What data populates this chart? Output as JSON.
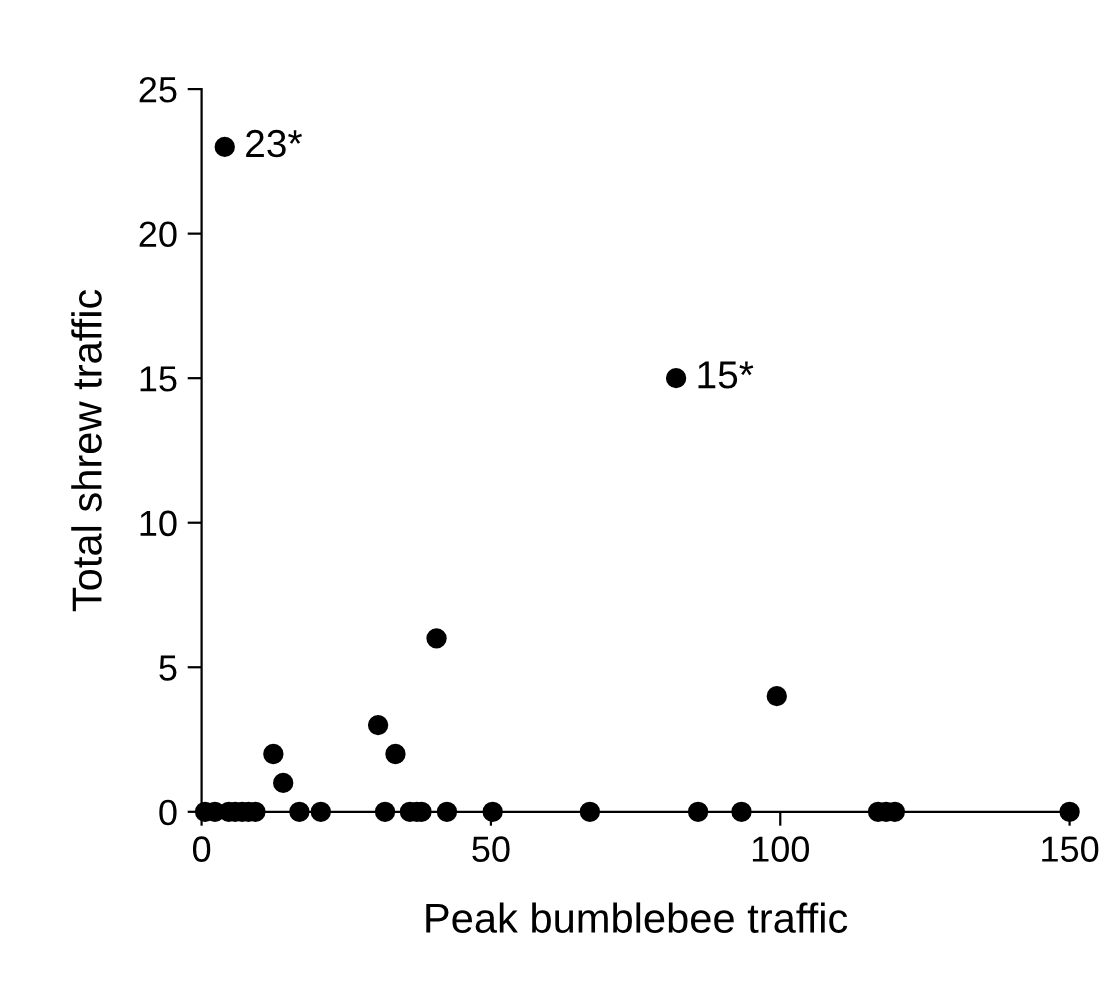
{
  "chart_data": {
    "type": "scatter",
    "xlabel": "Peak bumblebee traffic",
    "ylabel": "Total shrew traffic",
    "x": [
      0.6,
      2.3,
      4.7,
      5.8,
      7.0,
      8.1,
      9.3,
      16.9,
      20.6,
      31.7,
      36.0,
      37.2,
      38.0,
      42.4,
      50.3,
      67.1,
      85.8,
      93.3,
      116.9,
      118.3,
      119.8,
      150,
      12.4,
      14.1,
      30.5,
      33.5,
      40.6,
      99.4,
      4,
      82
    ],
    "series": [
      {
        "color": "#000000",
        "values": [
          0,
          0,
          0,
          0,
          0,
          0,
          0,
          0,
          0,
          0,
          0,
          0,
          0,
          0,
          0,
          0,
          0,
          0,
          0,
          0,
          0,
          0,
          2,
          1,
          3,
          2,
          6,
          4,
          23,
          15
        ]
      }
    ],
    "annotations": [
      {
        "text": "23*",
        "x": 4,
        "y": 23
      },
      {
        "text": "15*",
        "x": 82,
        "y": 15
      }
    ],
    "xlim": [
      0,
      150
    ],
    "xticks": [
      0,
      50,
      100,
      150
    ],
    "ylim": [
      0,
      25
    ],
    "yticks": [
      0,
      5,
      10,
      15,
      20,
      25
    ],
    "marker": "circle",
    "grid": false,
    "legend": false
  }
}
